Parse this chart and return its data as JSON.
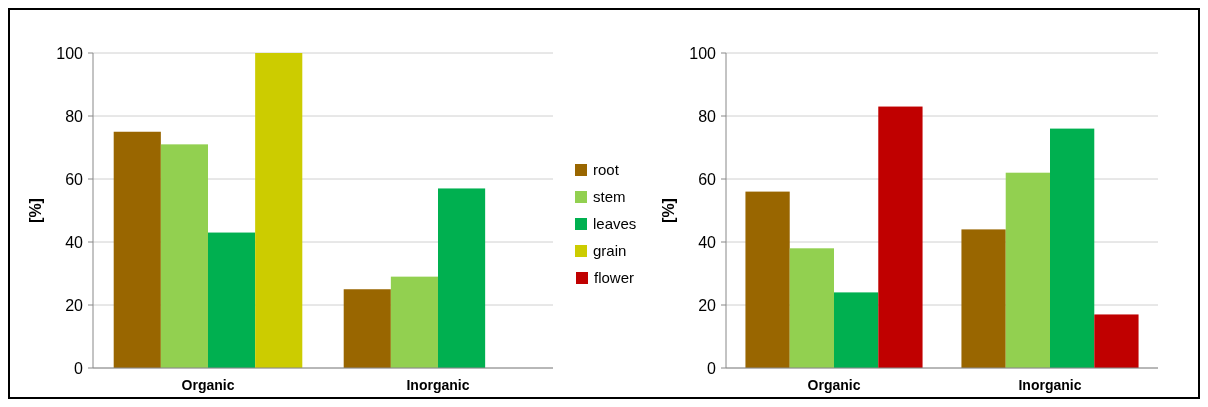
{
  "chart_data": [
    {
      "type": "bar",
      "ylabel": "[%]",
      "categories": [
        "Organic",
        "Inorganic"
      ],
      "ylim": [
        0,
        100
      ],
      "yticks": [
        0,
        20,
        40,
        60,
        80,
        100
      ],
      "grid": "y",
      "legend": "right",
      "series": [
        {
          "name": "root",
          "color": "#996600",
          "values": [
            75,
            25
          ]
        },
        {
          "name": "stem",
          "color": "#92d050",
          "values": [
            71,
            29
          ]
        },
        {
          "name": "leaves",
          "color": "#00b050",
          "values": [
            43,
            57
          ]
        },
        {
          "name": "grain",
          "color": "#cccc00",
          "values": [
            100,
            null
          ]
        }
      ]
    },
    {
      "type": "bar",
      "ylabel": "[%]",
      "categories": [
        "Organic",
        "Inorganic"
      ],
      "ylim": [
        0,
        100
      ],
      "yticks": [
        0,
        20,
        40,
        60,
        80,
        100
      ],
      "grid": "y",
      "legend": "left",
      "series": [
        {
          "color": "#996600",
          "values": [
            56,
            44
          ]
        },
        {
          "color": "#92d050",
          "values": [
            38,
            62
          ]
        },
        {
          "color": "#00b050",
          "values": [
            24,
            76
          ]
        },
        {
          "name": "flower",
          "color": "#c00000",
          "values": [
            83,
            17
          ]
        }
      ]
    }
  ]
}
